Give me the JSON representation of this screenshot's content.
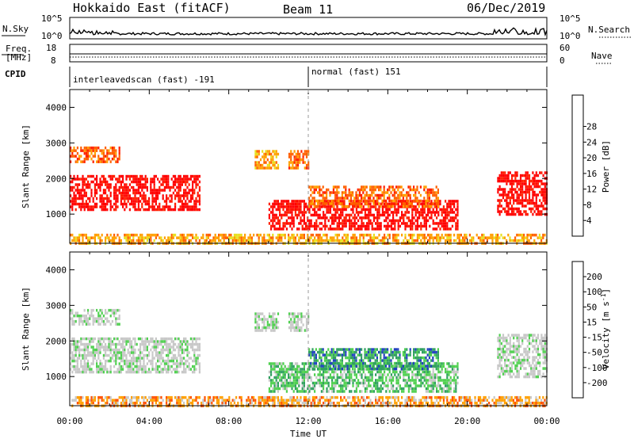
{
  "header": {
    "title": "Hokkaido East (fitACF)",
    "beam": "Beam 11",
    "date": "06/Dec/2019"
  },
  "top_panel": {
    "nsky_label": "N.Sky",
    "nsearch_label": "N.Search",
    "left_ticks": [
      "10^5",
      "10^0"
    ],
    "right_ticks": [
      "10^5",
      "10^0"
    ]
  },
  "freq_panel": {
    "label_line1": "Freq.",
    "label_line2": "[MHz]",
    "left_ticks": [
      "18",
      "8"
    ],
    "right_ticks": [
      "60",
      "0"
    ],
    "nave_label": "Nave"
  },
  "cpid": {
    "label": "CPID",
    "segments": [
      {
        "text": "interleavedscan (fast) -191",
        "start_hour": 0
      },
      {
        "text": "normal (fast) 151",
        "start_hour": 12
      }
    ]
  },
  "colors": {
    "power": [
      "#0000ff",
      "#2060c0",
      "#40a060",
      "#70c070",
      "#e8e020",
      "#ffa000",
      "#ff6000",
      "#ff2000",
      "#ff0000"
    ],
    "velocity": [
      "#ff0000",
      "#ff5000",
      "#ffa000",
      "#c8c8c8",
      "#c8c8c8",
      "#50d050",
      "#30a060",
      "#2040c0",
      "#0000ff"
    ]
  },
  "chart_data": [
    {
      "type": "heatmap",
      "quantity": "power",
      "ylabel": "Slant Range [km]",
      "ylim": [
        180,
        4500
      ],
      "yticks": [
        1000,
        2000,
        3000,
        4000
      ],
      "xlim_hours": [
        0,
        24
      ],
      "colorbar": {
        "label": "Power [dB]",
        "ticks": [
          "4",
          "8",
          "12",
          "16",
          "20",
          "24",
          "28"
        ]
      },
      "features": [
        {
          "t0": 0,
          "t1": 6.5,
          "r0": 1100,
          "r1": 2100,
          "level": 8
        },
        {
          "t0": 0,
          "t1": 2.5,
          "r0": 2500,
          "r1": 2900,
          "level": 6
        },
        {
          "t0": 9.3,
          "t1": 10.5,
          "r0": 2300,
          "r1": 2800,
          "level": 5
        },
        {
          "t0": 11.0,
          "t1": 12.0,
          "r0": 2300,
          "r1": 2800,
          "level": 6
        },
        {
          "t0": 10.0,
          "t1": 19.5,
          "r0": 600,
          "r1": 1400,
          "level": 8
        },
        {
          "t0": 12.0,
          "t1": 18.5,
          "r0": 1200,
          "r1": 1800,
          "level": 6
        },
        {
          "t0": 21.5,
          "t1": 24.0,
          "r0": 1000,
          "r1": 2200,
          "level": 8
        },
        {
          "t0": 0,
          "t1": 24.0,
          "r0": 200,
          "r1": 450,
          "level": 5
        }
      ]
    },
    {
      "type": "heatmap",
      "quantity": "velocity",
      "ylabel": "Slant Range [km]",
      "ylim": [
        180,
        4500
      ],
      "yticks": [
        1000,
        2000,
        3000,
        4000
      ],
      "xlim_hours": [
        0,
        24
      ],
      "colorbar": {
        "label": "Velocity [m s",
        "label_sup": "-1",
        "ticks": [
          "-200",
          "-100",
          "-50",
          "-15",
          "15",
          "50",
          "100",
          "200"
        ]
      },
      "features": [
        {
          "t0": 0,
          "t1": 6.5,
          "r0": 1100,
          "r1": 2100,
          "level": 4
        },
        {
          "t0": 0,
          "t1": 2.5,
          "r0": 2500,
          "r1": 2900,
          "level": 4
        },
        {
          "t0": 9.3,
          "t1": 10.5,
          "r0": 2300,
          "r1": 2800,
          "level": 4
        },
        {
          "t0": 11.0,
          "t1": 12.0,
          "r0": 2300,
          "r1": 2800,
          "level": 4
        },
        {
          "t0": 10.0,
          "t1": 19.5,
          "r0": 600,
          "r1": 1400,
          "level": 5
        },
        {
          "t0": 12.0,
          "t1": 18.5,
          "r0": 1200,
          "r1": 1800,
          "level": 6
        },
        {
          "t0": 21.5,
          "t1": 24.0,
          "r0": 1000,
          "r1": 2200,
          "level": 4
        },
        {
          "t0": 0,
          "t1": 24.0,
          "r0": 200,
          "r1": 450,
          "level": 2
        }
      ]
    }
  ],
  "time_axis": {
    "ticks": [
      "00:00",
      "04:00",
      "08:00",
      "12:00",
      "16:00",
      "20:00",
      "00:00"
    ],
    "label": "Time UT"
  }
}
